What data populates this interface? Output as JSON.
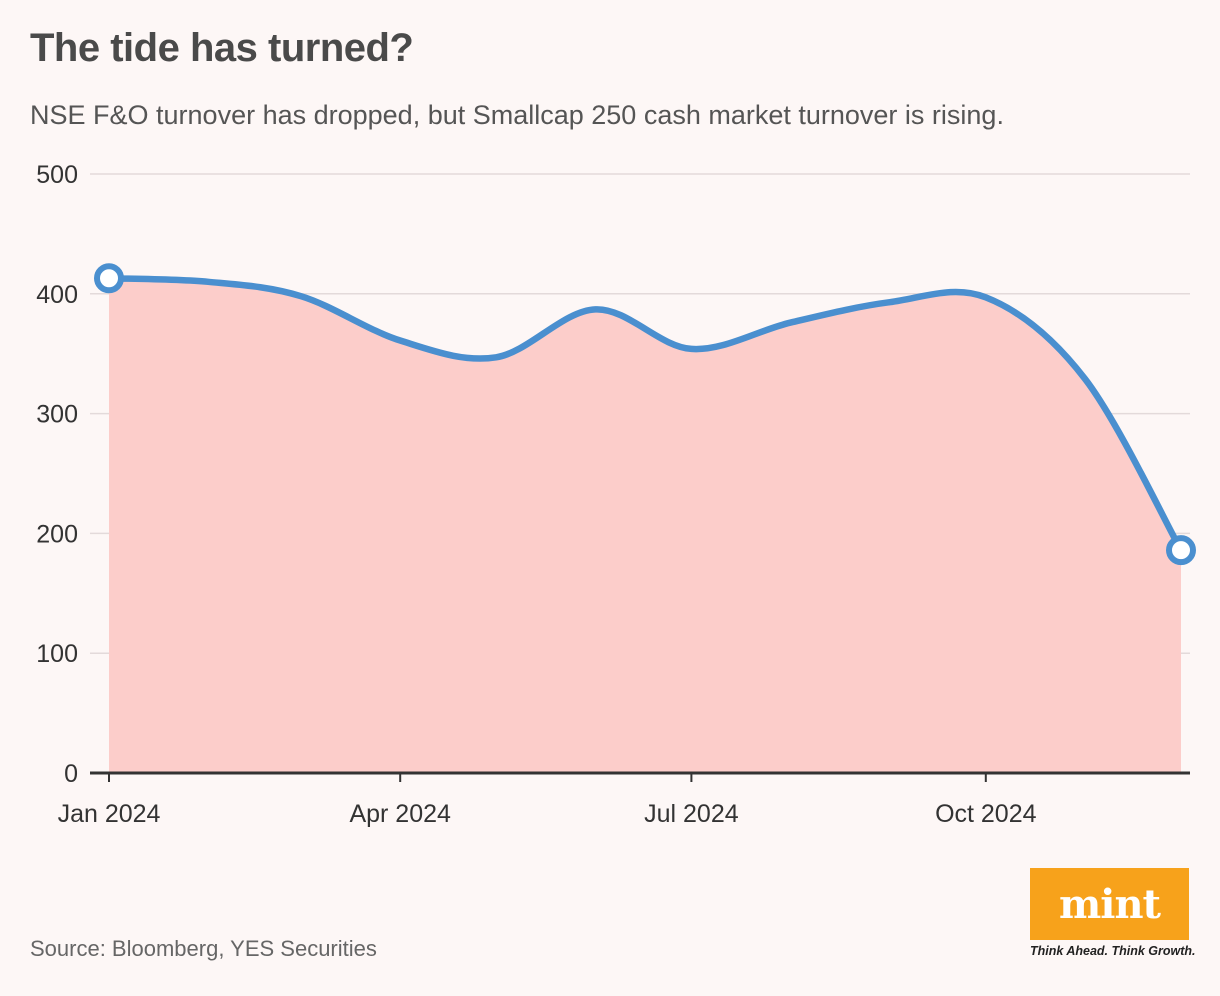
{
  "header": {
    "title": "The tide has turned?",
    "subtitle": "NSE F&O turnover has dropped, but Smallcap 250 cash market turnover is rising."
  },
  "footer": {
    "source": "Source: Bloomberg, YES Securities"
  },
  "logo": {
    "wordmark": "mint",
    "tagline": "Think Ahead. Think Growth."
  },
  "colors": {
    "line": "#4a8fcf",
    "area": "#fccdca",
    "grid": "#e3dada",
    "axis": "#333333",
    "background": "#fdf7f6",
    "logo": "#f7a21b"
  },
  "chart_data": {
    "type": "area",
    "title": "The tide has turned?",
    "xlabel": "",
    "ylabel": "",
    "ylim": [
      0,
      500
    ],
    "yticks": [
      0,
      100,
      200,
      300,
      400,
      500
    ],
    "xticks": [
      {
        "label": "Jan 2024",
        "date": "2024-01-01"
      },
      {
        "label": "Apr 2024",
        "date": "2024-04-01"
      },
      {
        "label": "Jul 2024",
        "date": "2024-07-01"
      },
      {
        "label": "Oct 2024",
        "date": "2024-10-01"
      }
    ],
    "grid": true,
    "series": [
      {
        "points": [
          {
            "x": "2024-01-01",
            "y": 413
          },
          {
            "x": "2024-02-01",
            "y": 410
          },
          {
            "x": "2024-03-01",
            "y": 398
          },
          {
            "x": "2024-04-01",
            "y": 361
          },
          {
            "x": "2024-05-01",
            "y": 347
          },
          {
            "x": "2024-06-01",
            "y": 387
          },
          {
            "x": "2024-07-01",
            "y": 354
          },
          {
            "x": "2024-08-01",
            "y": 376
          },
          {
            "x": "2024-09-01",
            "y": 393
          },
          {
            "x": "2024-10-01",
            "y": 397
          },
          {
            "x": "2024-11-01",
            "y": 329
          },
          {
            "x": "2024-12-01",
            "y": 186
          }
        ]
      }
    ]
  }
}
